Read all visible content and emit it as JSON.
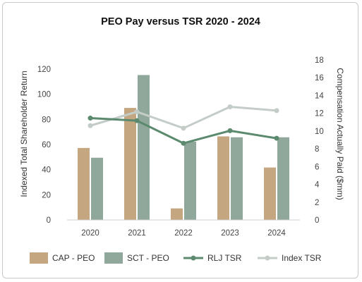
{
  "chart_data": {
    "type": "bar",
    "title": "PEO Pay versus TSR 2020 - 2024",
    "categories": [
      "2020",
      "2021",
      "2022",
      "2023",
      "2024"
    ],
    "ylabel": "Indexed Total Shareholder Return",
    "y2label": "Compensation Actually Paid ($mm)",
    "ylim": [
      0,
      120
    ],
    "y_ticks": [
      "0",
      "20",
      "40",
      "60",
      "80",
      "100",
      "120"
    ],
    "y2lim": [
      0,
      18
    ],
    "y2_ticks": [
      "0",
      "2",
      "4",
      "6",
      "8",
      "10",
      "12",
      "14",
      "16",
      "18"
    ],
    "grid": false,
    "legend_position": "bottom",
    "bar_series": [
      {
        "name": "CAP - PEO",
        "axis": "right",
        "color": "#c4a680",
        "values": [
          8.1,
          12.6,
          1.3,
          9.4,
          5.9
        ]
      },
      {
        "name": "SCT - PEO",
        "axis": "right",
        "color": "#90a89b",
        "values": [
          7.0,
          16.3,
          8.8,
          9.3,
          9.3
        ]
      }
    ],
    "line_series": [
      {
        "name": "RLJ TSR",
        "axis": "left",
        "color": "#5b8a6e",
        "values": [
          81,
          79,
          61,
          71,
          65
        ]
      },
      {
        "name": "Index TSR",
        "axis": "left",
        "color": "#c4ccc7",
        "values": [
          75,
          86,
          73,
          90,
          87
        ]
      }
    ]
  }
}
